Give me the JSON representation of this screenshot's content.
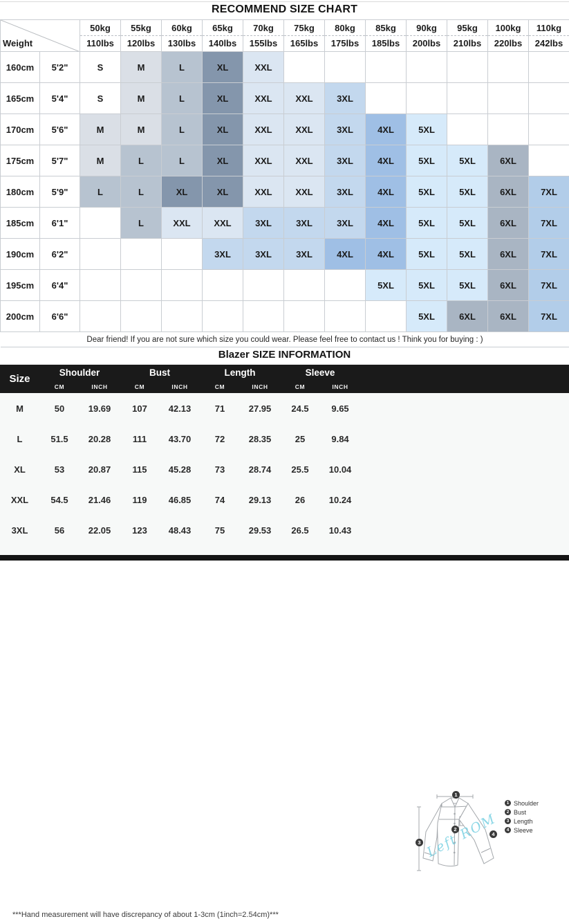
{
  "size_chart": {
    "title": "RECOMMEND SIZE CHART",
    "corner_label": "Weight",
    "weights": [
      {
        "kg": "50kg",
        "lbs": "110lbs"
      },
      {
        "kg": "55kg",
        "lbs": "120lbs"
      },
      {
        "kg": "60kg",
        "lbs": "130lbs"
      },
      {
        "kg": "65kg",
        "lbs": "140lbs"
      },
      {
        "kg": "70kg",
        "lbs": "155lbs"
      },
      {
        "kg": "75kg",
        "lbs": "165lbs"
      },
      {
        "kg": "80kg",
        "lbs": "175lbs"
      },
      {
        "kg": "85kg",
        "lbs": "185lbs"
      },
      {
        "kg": "90kg",
        "lbs": "200lbs"
      },
      {
        "kg": "95kg",
        "lbs": "210lbs"
      },
      {
        "kg": "100kg",
        "lbs": "220lbs"
      },
      {
        "kg": "110kg",
        "lbs": "242lbs"
      }
    ],
    "rows": [
      {
        "cm": "160cm",
        "ft": "5'2\"",
        "cells": [
          "S",
          "M",
          "L",
          "XL",
          "XXL",
          "",
          "",
          "",
          "",
          "",
          "",
          ""
        ]
      },
      {
        "cm": "165cm",
        "ft": "5'4\"",
        "cells": [
          "S",
          "M",
          "L",
          "XL",
          "XXL",
          "XXL",
          "3XL",
          "",
          "",
          "",
          "",
          ""
        ]
      },
      {
        "cm": "170cm",
        "ft": "5'6\"",
        "cells": [
          "M",
          "M",
          "L",
          "XL",
          "XXL",
          "XXL",
          "3XL",
          "4XL",
          "5XL",
          "",
          "",
          ""
        ]
      },
      {
        "cm": "175cm",
        "ft": "5'7\"",
        "cells": [
          "M",
          "L",
          "L",
          "XL",
          "XXL",
          "XXL",
          "3XL",
          "4XL",
          "5XL",
          "5XL",
          "6XL",
          ""
        ]
      },
      {
        "cm": "180cm",
        "ft": "5'9\"",
        "cells": [
          "L",
          "L",
          "XL",
          "XL",
          "XXL",
          "XXL",
          "3XL",
          "4XL",
          "5XL",
          "5XL",
          "6XL",
          "7XL"
        ]
      },
      {
        "cm": "185cm",
        "ft": "6'1\"",
        "cells": [
          "",
          "L",
          "XXL",
          "XXL",
          "3XL",
          "3XL",
          "3XL",
          "4XL",
          "5XL",
          "5XL",
          "6XL",
          "7XL"
        ]
      },
      {
        "cm": "190cm",
        "ft": "6'2\"",
        "cells": [
          "",
          "",
          "",
          "3XL",
          "3XL",
          "3XL",
          "4XL",
          "4XL",
          "5XL",
          "5XL",
          "6XL",
          "7XL"
        ]
      },
      {
        "cm": "195cm",
        "ft": "6'4\"",
        "cells": [
          "",
          "",
          "",
          "",
          "",
          "",
          "",
          "5XL",
          "5XL",
          "5XL",
          "6XL",
          "7XL"
        ]
      },
      {
        "cm": "200cm",
        "ft": "6'6\"",
        "cells": [
          "",
          "",
          "",
          "",
          "",
          "",
          "",
          "",
          "5XL",
          "6XL",
          "6XL",
          "7XL"
        ]
      }
    ],
    "note": "Dear friend! If you are not sure which size you could wear. Please feel free to contact us ! Think you for buying  : )"
  },
  "size_info": {
    "title": "Blazer SIZE INFORMATION",
    "size_header": "Size",
    "groups": [
      "Shoulder",
      "Bust",
      "Length",
      "Sleeve"
    ],
    "unit_cm": "CM",
    "unit_inch": "INCH",
    "rows": [
      {
        "size": "M",
        "values": [
          "50",
          "19.69",
          "107",
          "42.13",
          "71",
          "27.95",
          "24.5",
          "9.65"
        ]
      },
      {
        "size": "L",
        "values": [
          "51.5",
          "20.28",
          "111",
          "43.70",
          "72",
          "28.35",
          "25",
          "9.84"
        ]
      },
      {
        "size": "XL",
        "values": [
          "53",
          "20.87",
          "115",
          "45.28",
          "73",
          "28.74",
          "25.5",
          "10.04"
        ]
      },
      {
        "size": "XXL",
        "values": [
          "54.5",
          "21.46",
          "119",
          "46.85",
          "74",
          "29.13",
          "26",
          "10.24"
        ]
      },
      {
        "size": "3XL",
        "values": [
          "56",
          "22.05",
          "123",
          "48.43",
          "75",
          "29.53",
          "26.5",
          "10.43"
        ]
      }
    ],
    "footnote": "***Hand measurement will have discrepancy of about 1-3cm (1inch=2.54cm)***"
  },
  "diagram": {
    "legend": [
      {
        "num": "1",
        "label": "Shoulder"
      },
      {
        "num": "2",
        "label": "Bust"
      },
      {
        "num": "3",
        "label": "Length"
      },
      {
        "num": "4",
        "label": "Sleeve"
      }
    ],
    "watermark": "Left ROM"
  },
  "colors": {
    "size_cells": {
      "S": "#ffffff",
      "M": "#dadfe6",
      "L": "#b7c3d0",
      "XL": "#8496ac",
      "XXL": "#dbe6f2",
      "3XL": "#c3d8ee",
      "4XL": "#9fbfe5",
      "5XL": "#d6eafa",
      "6XL": "#a9b5c3",
      "7XL": "#b2cde9"
    },
    "info_header_bg": "#1a1a1a",
    "info_header_text": "#ffffff",
    "lower_section_bg": "#f7f9f8",
    "bottom_bar": "#151515",
    "watermark_color": "#78d0e2",
    "gridline": "#c9cdd2"
  }
}
